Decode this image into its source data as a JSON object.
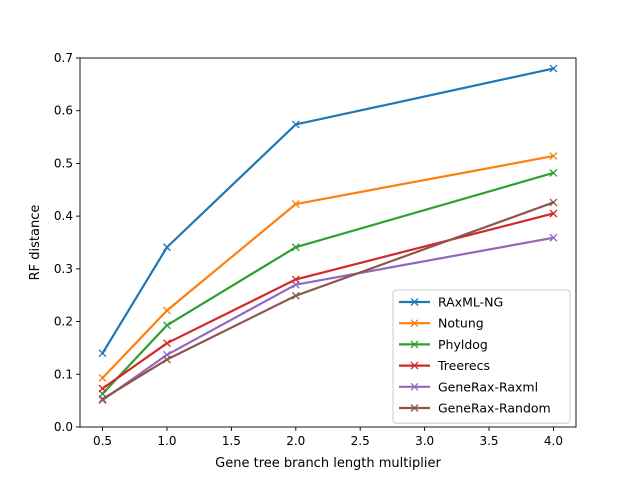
{
  "chart_data": {
    "type": "line",
    "xlabel": "Gene tree branch length multiplier",
    "ylabel": "RF distance",
    "xlim": [
      0.325,
      4.175
    ],
    "ylim": [
      0.0,
      0.7
    ],
    "xticks": [
      "0.5",
      "1.0",
      "1.5",
      "2.0",
      "2.5",
      "3.0",
      "3.5",
      "4.0"
    ],
    "yticks": [
      "0.0",
      "0.1",
      "0.2",
      "0.3",
      "0.4",
      "0.5",
      "0.6",
      "0.7"
    ],
    "grid": false,
    "legend_position": "lower-right",
    "marker": "x",
    "x": [
      0.5,
      1.0,
      2.0,
      4.0
    ],
    "series": [
      {
        "name": "RAxML-NG",
        "color": "#1f77b4",
        "values": [
          0.14,
          0.341,
          0.574,
          0.68
        ]
      },
      {
        "name": "Notung",
        "color": "#ff7f0e",
        "values": [
          0.093,
          0.221,
          0.423,
          0.514
        ]
      },
      {
        "name": "Phyldog",
        "color": "#2ca02c",
        "values": [
          0.063,
          0.193,
          0.341,
          0.482
        ]
      },
      {
        "name": "Treerecs",
        "color": "#d62728",
        "values": [
          0.073,
          0.159,
          0.28,
          0.405
        ]
      },
      {
        "name": "GeneRax-Raxml",
        "color": "#9467bd",
        "values": [
          0.051,
          0.137,
          0.27,
          0.359
        ]
      },
      {
        "name": "GeneRax-Random",
        "color": "#8c564b",
        "values": [
          0.053,
          0.128,
          0.249,
          0.426
        ]
      }
    ]
  }
}
